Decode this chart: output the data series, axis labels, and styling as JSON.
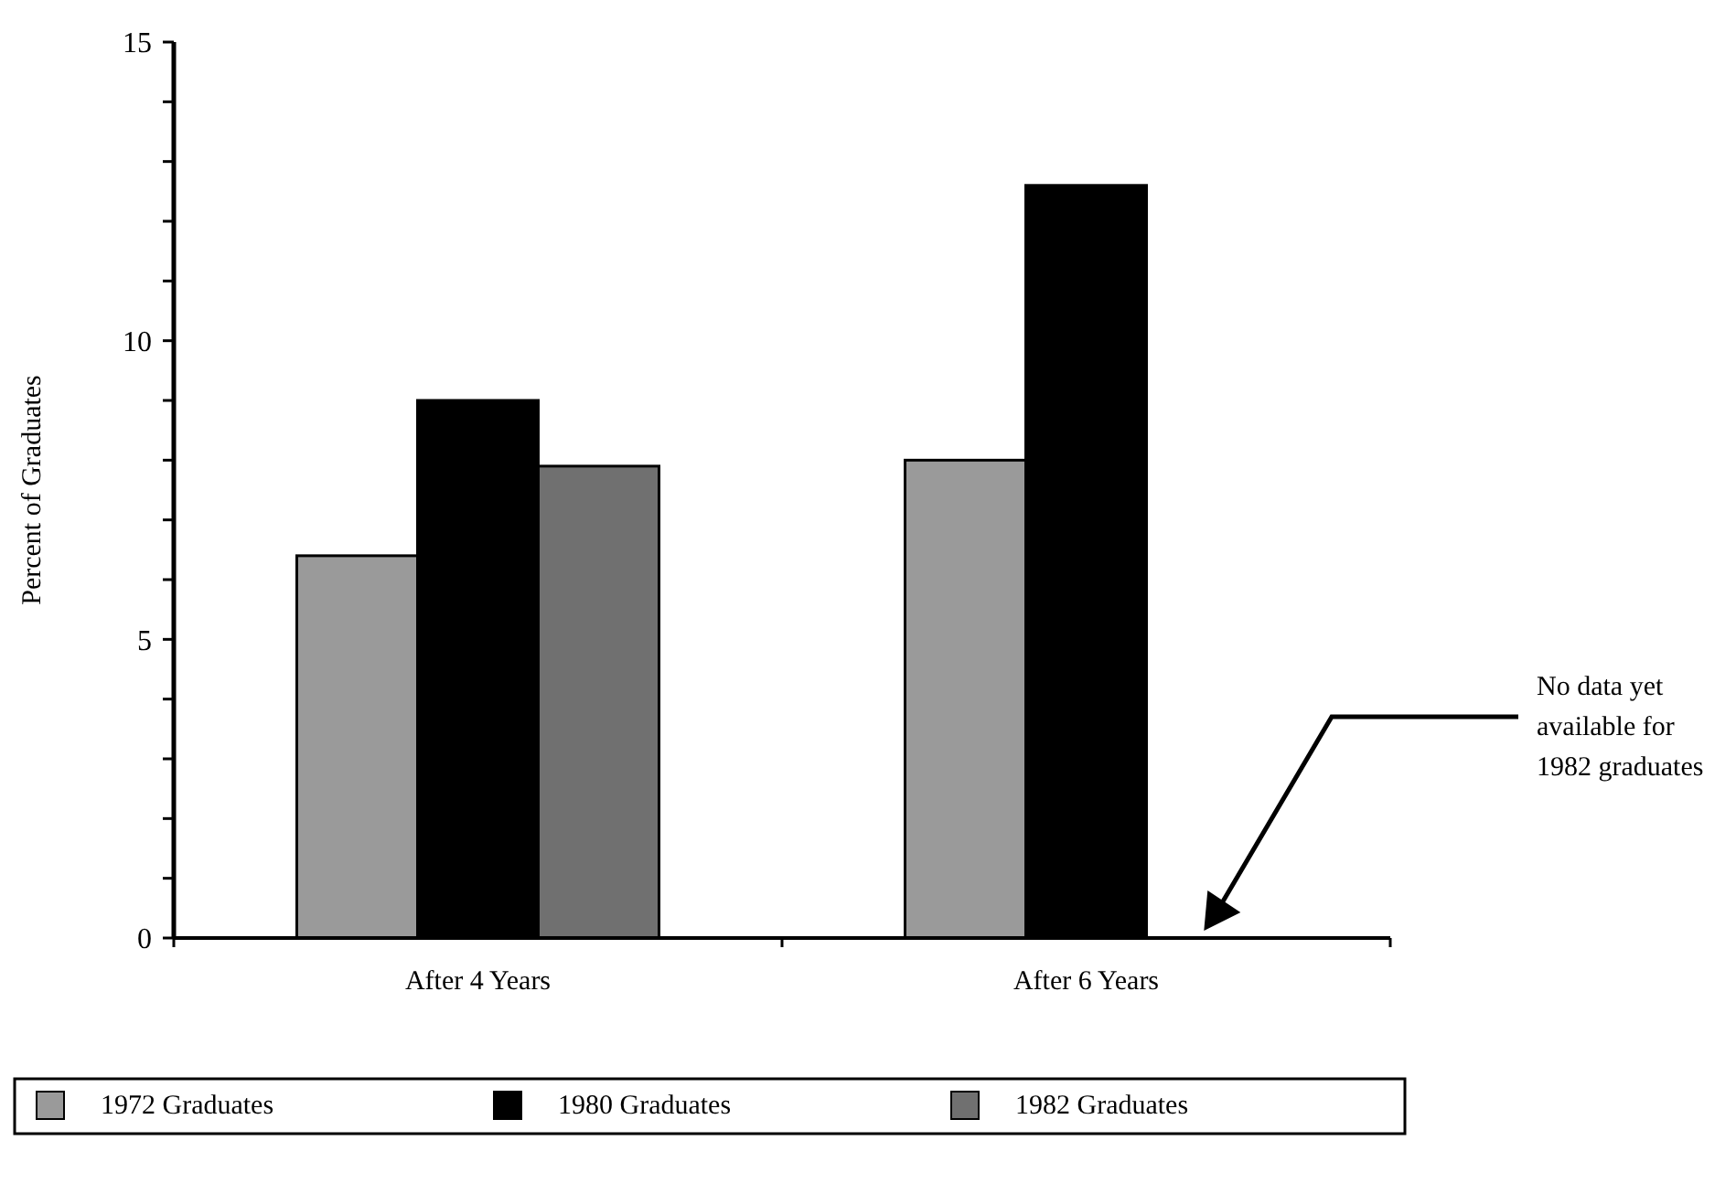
{
  "chart_data": {
    "type": "bar",
    "ylabel": "Percent of Graduates",
    "categories": [
      "After 4 Years",
      "After 6 Years"
    ],
    "series": [
      {
        "name": "1972 Graduates",
        "color": "#9a9a9a",
        "values": [
          6.4,
          8.0
        ]
      },
      {
        "name": "1980 Graduates",
        "color": "#000000",
        "values": [
          9.0,
          12.6
        ]
      },
      {
        "name": "1982 Graduates",
        "color": "#707070",
        "values": [
          7.9,
          null
        ]
      }
    ],
    "ylim": [
      0,
      15
    ],
    "yticks": [
      0,
      {
        "value": 1,
        "label": null
      },
      {
        "value": 2,
        "label": null
      },
      {
        "value": 3,
        "label": null
      },
      {
        "value": 4,
        "label": null
      },
      5,
      {
        "value": 6,
        "label": null
      },
      {
        "value": 7,
        "label": null
      },
      {
        "value": 8,
        "label": null
      },
      {
        "value": 9,
        "label": null
      },
      10,
      {
        "value": 11,
        "label": null
      },
      {
        "value": 12,
        "label": null
      },
      {
        "value": 13,
        "label": null
      },
      {
        "value": 14,
        "label": null
      },
      15
    ],
    "legend": "bottom",
    "annotations": [
      "No data yet available for 1982 graduates"
    ]
  }
}
